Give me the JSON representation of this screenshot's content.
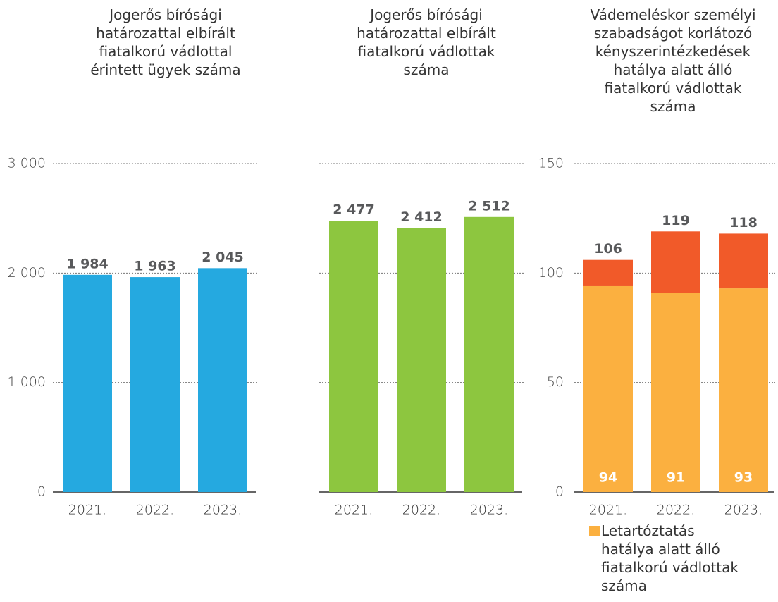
{
  "chart_data": [
    {
      "type": "bar",
      "title": "Jogerős bírósági\nhatározattal elbírált\nfiatalkorú vádlottal\nérintett ügyek száma",
      "categories": [
        "2021.",
        "2022.",
        "2023."
      ],
      "values": [
        1984,
        1963,
        2045
      ],
      "value_labels": [
        "1 984",
        "1 963",
        "2 045"
      ],
      "color": "#25a9e0",
      "ylim": [
        0,
        3000
      ],
      "yticks": [
        0,
        {
          "value": 1000,
          "label": "1 000"
        },
        {
          "value": 2000,
          "label": "2 000"
        },
        {
          "value": 3000,
          "label": "3 000"
        }
      ],
      "grid": true,
      "show_tick_labels": true
    },
    {
      "type": "bar",
      "title": "Jogerős bírósági\nhatározattal elbírált\nfiatalkorú vádlottak\nszáma",
      "categories": [
        "2021.",
        "2022.",
        "2023."
      ],
      "values": [
        2477,
        2412,
        2512
      ],
      "value_labels": [
        "2 477",
        "2 412",
        "2 512"
      ],
      "color": "#8dc63f",
      "ylim": [
        0,
        3000
      ],
      "yticks": [
        0,
        1000,
        2000,
        3000
      ],
      "grid": true,
      "show_tick_labels": false
    },
    {
      "type": "stacked_bar",
      "title": "Vádemeléskor személyi\nszabadságot korlátozó\nkényszerintézkedések\nhatálya alatt álló\nfiatalkorú vádlottak\nszáma",
      "categories": [
        "2021.",
        "2022.",
        "2023."
      ],
      "series": [
        {
          "name": "Letartóztatás\nhatálya alatt álló\nfiatalkorú vádlottak\nszáma",
          "color": "#fbb040",
          "values": [
            94,
            91,
            93
          ]
        },
        {
          "color": "#f15a29",
          "values": [
            12,
            28,
            25
          ]
        }
      ],
      "totals": [
        106,
        119,
        118
      ],
      "ylim": [
        0,
        150
      ],
      "yticks": [
        0,
        50,
        100,
        150
      ],
      "grid": true,
      "show_tick_labels": true
    }
  ]
}
